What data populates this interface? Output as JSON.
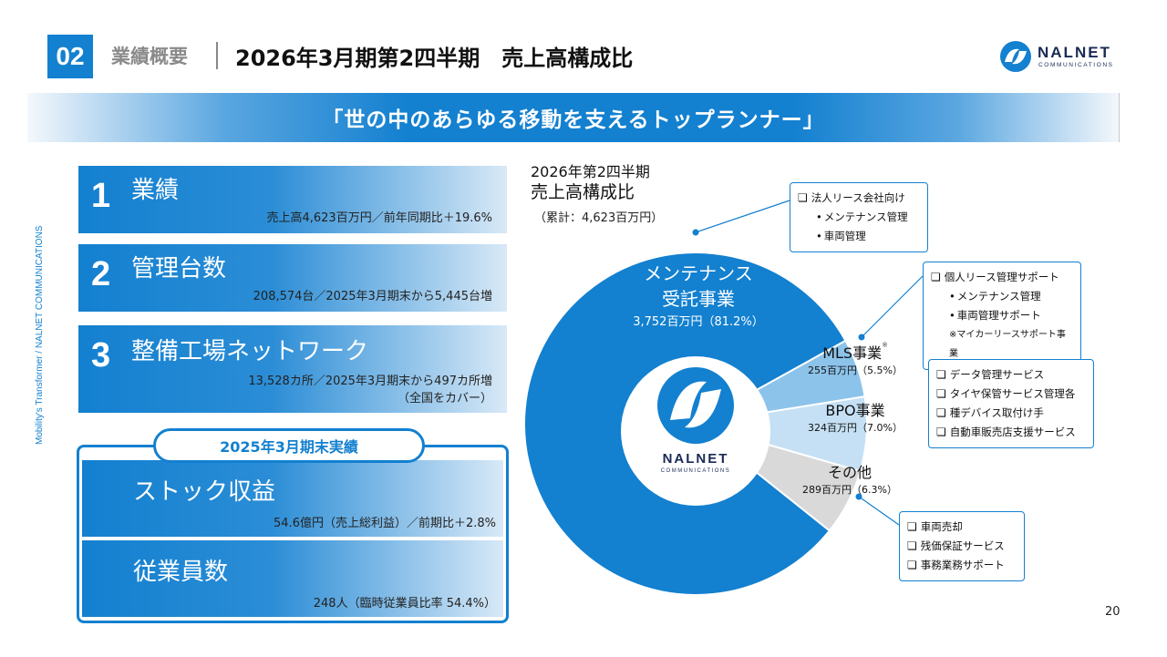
{
  "header": {
    "section_number": "02",
    "section_label": "業績概要",
    "title": "2026年3月期第2四半期　売上高構成比"
  },
  "logo": {
    "name": "NALNET",
    "sub": "COMMUNICATIONS"
  },
  "banner": "「世の中のあらゆる移動を支えるトップランナー」",
  "side_text": "Mobility's Transformer / NALNET COMMUNICATIONS",
  "kpis": [
    {
      "num": "1",
      "head": "業績",
      "sub": "売上高4,623百万円／前年同期比＋19.6%"
    },
    {
      "num": "2",
      "head": "管理台数",
      "sub": "208,574台／2025年3月期末から5,445台増"
    },
    {
      "num": "3",
      "head": "整備工場ネットワーク",
      "sub1": "13,528カ所／2025年3月期末から497カ所増",
      "sub2": "（全国をカバー）"
    }
  ],
  "results": {
    "tag": "2025年3月期末実績",
    "rows": [
      {
        "head": "ストック収益",
        "sub": "54.6億円（売上総利益）／前期比＋2.8%"
      },
      {
        "head": "従業員数",
        "sub": "248人（臨時従業員比率 54.4%）"
      }
    ]
  },
  "chart_data": {
    "type": "pie",
    "title_line1": "2026年第2四半期",
    "title_line2": "売上高構成比",
    "total": "（累計：4,623百万円）",
    "unit": "百万円",
    "slices": [
      {
        "name_line1": "メンテナンス",
        "name_line2": "受託事業",
        "value": 3752,
        "percent": 81.2,
        "label": "3,752百万円（81.2%）",
        "color": "#1380d0"
      },
      {
        "name_line1": "MLS事業",
        "note": "※",
        "value": 255,
        "percent": 5.5,
        "label": "255百万円（5.5%）",
        "color": "#8cc3ea"
      },
      {
        "name_line1": "BPO事業",
        "value": 324,
        "percent": 7.0,
        "label": "324百万円（7.0%）",
        "color": "#c5e0f4"
      },
      {
        "name_line1": "その他",
        "value": 289,
        "percent": 6.3,
        "label": "289百万円（6.3%）",
        "color": "#d9d9d9"
      }
    ]
  },
  "callouts": {
    "maintenance": {
      "head": "法人リース会社向け",
      "items": [
        "メンテナンス管理",
        "車両管理"
      ]
    },
    "mls": {
      "head": "個人リース管理サポート",
      "items": [
        "メンテナンス管理",
        "車両管理サポート"
      ],
      "note": "※マイカーリースサポート事業"
    },
    "bpo": {
      "items": [
        "データ管理サービス",
        "タイヤ保管サービス管理各",
        "種デバイス取付け手",
        "自動車販売店支援サービス"
      ]
    },
    "other": {
      "items": [
        "車両売却",
        "残価保証サービス",
        "事務業務サポート"
      ]
    }
  },
  "page_number": "20",
  "colors": {
    "accent": "#1380d0"
  }
}
